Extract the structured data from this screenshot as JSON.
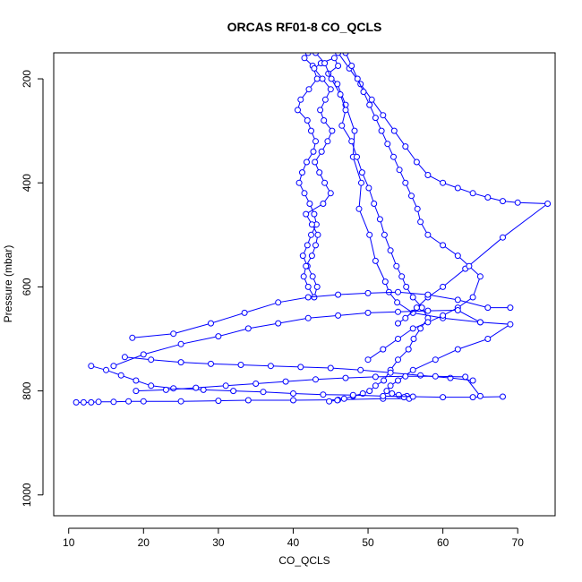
{
  "chart_data": {
    "type": "scatter",
    "title": "ORCAS RF01-8 CO_QCLS",
    "xlabel": "CO_QCLS",
    "ylabel": "Pressure (mbar)",
    "xlim": [
      8,
      75
    ],
    "ylim": [
      1040,
      150
    ],
    "y_inverted": true,
    "x_ticks": [
      10,
      20,
      30,
      40,
      50,
      60,
      70
    ],
    "y_ticks": [
      200,
      400,
      600,
      800,
      1000
    ],
    "grid": false,
    "legend": "none",
    "marker": "open-circle",
    "line": true,
    "color": "#0000ff",
    "series": [
      {
        "x": [
          42.0,
          41.5,
          42.6,
          43.2,
          42.1,
          41.0,
          40.6,
          41.9,
          42.4,
          43.0,
          42.7,
          41.8,
          41.2,
          40.8,
          41.5,
          42.2,
          42.8,
          43.1,
          42.4,
          41.9,
          41.3,
          41.9,
          42.6,
          43.2,
          42.8,
          42.0,
          41.4,
          41.7,
          42.5,
          43.0,
          43.3,
          42.5,
          41.7,
          44.0,
          45.0,
          44.2,
          43.5,
          42.9,
          43.8,
          44.6,
          45.2,
          44.1,
          43.6,
          44.3,
          45.0,
          43.9,
          42.8,
          43.7,
          45.5,
          46.0,
          44.7,
          45.9,
          47.0,
          48.2,
          48.0,
          49.1,
          48.8,
          50.2,
          51.0,
          52.3,
          52.8,
          53.9,
          56.0,
          60.0,
          65.0,
          69.0,
          66.0,
          62.0,
          59.0,
          56.0,
          54.0,
          53.0,
          52.5,
          53.2,
          54.1,
          55.2,
          54.8,
          55.5,
          52.0,
          46.0,
          40.0,
          34.0,
          30.0,
          25.0,
          20.0,
          18.0,
          16.0,
          14.0,
          13.0,
          12.0,
          11.0
        ],
        "y": [
          150,
          160,
          175,
          200,
          220,
          240,
          260,
          280,
          300,
          320,
          340,
          360,
          380,
          400,
          420,
          440,
          460,
          480,
          500,
          520,
          540,
          560,
          580,
          600,
          620,
          600,
          580,
          560,
          540,
          520,
          500,
          480,
          460,
          440,
          420,
          400,
          380,
          360,
          340,
          320,
          300,
          280,
          260,
          240,
          220,
          200,
          180,
          170,
          160,
          175,
          190,
          210,
          250,
          300,
          350,
          400,
          450,
          500,
          550,
          590,
          610,
          630,
          650,
          660,
          668,
          672,
          700,
          720,
          740,
          760,
          780,
          790,
          800,
          805,
          808,
          810,
          812,
          815,
          815,
          817,
          818,
          818,
          819,
          820,
          820,
          820,
          821,
          821,
          822,
          822,
          822
        ]
      },
      {
        "x": [
          43.0,
          44.2,
          45.1,
          46.3,
          47.0,
          46.5,
          47.8,
          48.5,
          49.2,
          50.1,
          50.8,
          51.6,
          52.2,
          53.0,
          53.8,
          54.5,
          55.1,
          56.0,
          57.2,
          58.0,
          57.0,
          56.1,
          55.4,
          54.0,
          53.0,
          52.1,
          51.0,
          50.2,
          49.3,
          48.0,
          46.8,
          45.9,
          44.8
        ],
        "y": [
          150,
          170,
          200,
          230,
          260,
          290,
          320,
          350,
          380,
          410,
          440,
          470,
          500,
          530,
          560,
          580,
          600,
          620,
          640,
          660,
          680,
          700,
          720,
          740,
          760,
          780,
          790,
          800,
          805,
          810,
          815,
          818,
          820
        ]
      },
      {
        "x": [
          46.0,
          47.5,
          49.0,
          50.5,
          52.0,
          53.5,
          55.0,
          56.5,
          58.0,
          60.0,
          62.0,
          64.0,
          66.0,
          68.0,
          70.0,
          74.0,
          68.0,
          63.0,
          60.0,
          58.0,
          56.5,
          55.0,
          54.0
        ],
        "y": [
          150,
          180,
          210,
          240,
          270,
          300,
          330,
          360,
          385,
          400,
          410,
          420,
          428,
          435,
          438,
          440,
          505,
          565,
          600,
          620,
          640,
          660,
          670
        ]
      },
      {
        "x": [
          47.0,
          47.8,
          48.6,
          49.4,
          50.2,
          51.0,
          51.8,
          52.6,
          53.4,
          54.2,
          55.0,
          55.8,
          56.6,
          57.0,
          58.0,
          60.0,
          62.0,
          63.5,
          65.0,
          64.0,
          62.0,
          60.0,
          58.0,
          56.0,
          54.0,
          52.0,
          50.0
        ],
        "y": [
          150,
          175,
          200,
          225,
          250,
          275,
          300,
          325,
          350,
          375,
          400,
          425,
          450,
          475,
          500,
          520,
          540,
          560,
          580,
          620,
          640,
          655,
          668,
          680,
          700,
          720,
          740
        ]
      },
      {
        "x": [
          13.0,
          15.0,
          17.0,
          19.0,
          21.0,
          24.0,
          28.0,
          32.0,
          36.0,
          40.0,
          44.0,
          48.0,
          52.0,
          56.0,
          60.0,
          64.0,
          68.0
        ],
        "y": [
          752,
          760,
          770,
          780,
          790,
          795,
          798,
          800,
          802,
          805,
          807,
          808,
          810,
          811,
          812,
          812,
          811
        ]
      },
      {
        "x": [
          16.0,
          20.0,
          25.0,
          30.0,
          34.0,
          38.0,
          42.0,
          46.0,
          50.0,
          54.0,
          58.0,
          62.0,
          65.0
        ],
        "y": [
          752,
          730,
          710,
          695,
          680,
          670,
          660,
          655,
          650,
          648,
          646,
          645,
          668
        ]
      },
      {
        "x": [
          18.5,
          24.0,
          29.0,
          33.5,
          38.0,
          42.0,
          46.0,
          50.0,
          54.0,
          58.0,
          62.0,
          66.0,
          69.0
        ],
        "y": [
          698,
          690,
          670,
          650,
          630,
          620,
          615,
          612,
          610,
          615,
          625,
          640,
          640
        ]
      },
      {
        "x": [
          17.5,
          21.0,
          25.0,
          29.0,
          33.0,
          37.0,
          41.0,
          45.0,
          49.0,
          53.0,
          57.0,
          61.0,
          64.0
        ],
        "y": [
          735,
          740,
          745,
          748,
          750,
          752,
          754,
          756,
          760,
          765,
          770,
          775,
          780
        ]
      },
      {
        "x": [
          19.0,
          23.0,
          27.0,
          31.0,
          35.0,
          39.0,
          43.0,
          47.0,
          51.0,
          55.0,
          59.0,
          63.0,
          65.0
        ],
        "y": [
          800,
          798,
          794,
          790,
          786,
          782,
          778,
          775,
          773,
          772,
          772,
          773,
          810
        ]
      }
    ]
  }
}
